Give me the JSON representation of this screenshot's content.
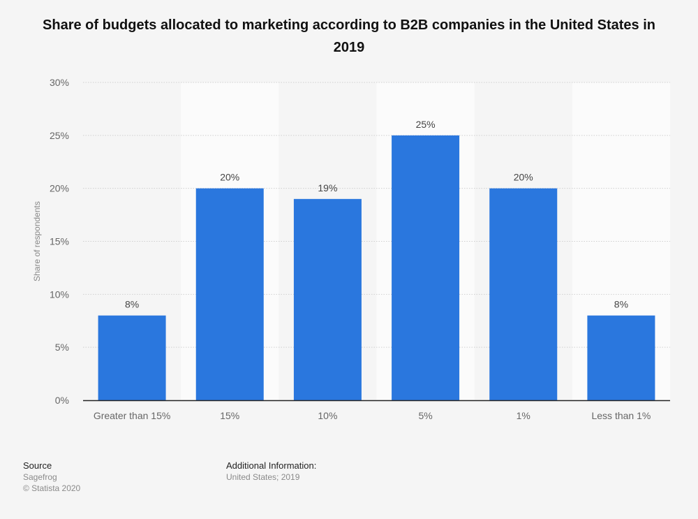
{
  "title": "Share of budgets allocated to marketing according to B2B companies in the United States in 2019",
  "chart_data": {
    "type": "bar",
    "title": "Share of budgets allocated to marketing according to B2B companies in the United States in 2019",
    "xlabel": "",
    "ylabel": "Share of respondents",
    "categories": [
      "Greater than 15%",
      "15%",
      "10%",
      "5%",
      "1%",
      "Less than 1%"
    ],
    "values": [
      8,
      20,
      19,
      25,
      20,
      8
    ],
    "value_labels": [
      "8%",
      "20%",
      "19%",
      "25%",
      "20%",
      "8%"
    ],
    "ylim": [
      0,
      30
    ],
    "yticks": [
      0,
      5,
      10,
      15,
      20,
      25,
      30
    ],
    "ytick_labels": [
      "0%",
      "5%",
      "10%",
      "15%",
      "20%",
      "25%",
      "30%"
    ],
    "grid": true,
    "colors": {
      "bar": "#2a77de",
      "band": "#fbfbfb",
      "grid": "#cfcfcf",
      "axis": "#222222",
      "text": "#666666"
    }
  },
  "footer": {
    "source_heading": "Source",
    "source_lines": [
      "Sagefrog",
      "© Statista 2020"
    ],
    "additional_heading": "Additional Information:",
    "additional_lines": [
      "United States; 2019"
    ]
  }
}
